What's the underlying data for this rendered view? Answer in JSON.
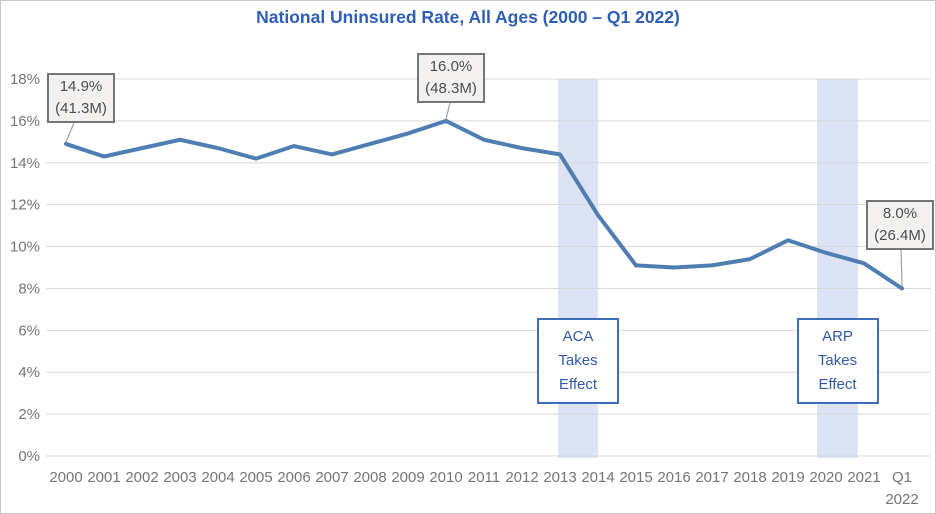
{
  "chart_data": {
    "type": "line",
    "title": "National Uninsured Rate, All Ages (2000 – Q1 2022)",
    "xlabel": "",
    "ylabel": "",
    "ylim": [
      0,
      18
    ],
    "grid": true,
    "legend": "none",
    "categories": [
      "2000",
      "2001",
      "2002",
      "2003",
      "2004",
      "2005",
      "2006",
      "2007",
      "2008",
      "2009",
      "2010",
      "2011",
      "2012",
      "2013",
      "2014",
      "2015",
      "2016",
      "2017",
      "2018",
      "2019",
      "2020",
      "2021",
      "Q1 2022"
    ],
    "series": [
      {
        "name": "National uninsured rate, all ages",
        "values": [
          14.9,
          14.3,
          14.7,
          15.1,
          14.7,
          14.2,
          14.8,
          14.4,
          14.9,
          15.4,
          16.0,
          15.1,
          14.7,
          14.4,
          11.5,
          9.1,
          9.0,
          9.1,
          9.4,
          10.3,
          9.7,
          9.2,
          8.0
        ]
      }
    ],
    "yticks": [
      {
        "value": 0,
        "label": "0%"
      },
      {
        "value": 2,
        "label": "2%"
      },
      {
        "value": 4,
        "label": "4%"
      },
      {
        "value": 6,
        "label": "6%"
      },
      {
        "value": 8,
        "label": "8%"
      },
      {
        "value": 10,
        "label": "10%"
      },
      {
        "value": 12,
        "label": "12%"
      },
      {
        "value": 14,
        "label": "14%"
      },
      {
        "value": 16,
        "label": "16%"
      },
      {
        "value": 18,
        "label": "18%"
      }
    ],
    "annotations": [
      {
        "year": "2000",
        "line1": "14.9%",
        "line2": "(41.3M)"
      },
      {
        "year": "2010",
        "line1": "16.0%",
        "line2": "(48.3M)"
      },
      {
        "year": "Q1 2022",
        "line1": "8.0%",
        "line2": "(26.4M)"
      }
    ],
    "event_bands": [
      {
        "start_year": "2013",
        "end_year": "2014",
        "label_lines": [
          "ACA",
          "Takes",
          "Effect"
        ]
      },
      {
        "start_year": "2020",
        "end_year": "2021",
        "label_lines": [
          "ARP",
          "Takes",
          "Effect"
        ]
      }
    ],
    "colors": {
      "line": "#4f7eb3",
      "band": "#dce3f5",
      "grid": "#d9d9d9",
      "tick_label": "#757575",
      "title": "#2e5eb8",
      "annotation_border": "#757575",
      "annotation_bg": "#f3f1f0",
      "annotation_text": "#4d4d4d",
      "event_border": "#3e6cb5",
      "event_text": "#2e5aa8",
      "leader": "#a0a0a0"
    }
  }
}
